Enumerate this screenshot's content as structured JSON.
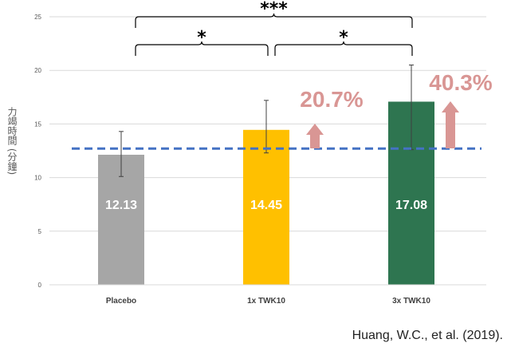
{
  "chart_data": {
    "type": "bar",
    "categories": [
      "Placebo",
      "1x TWK10",
      "3x TWK10"
    ],
    "values": [
      12.13,
      14.45,
      17.08
    ],
    "value_labels": [
      "12.13",
      "14.45",
      "17.08"
    ],
    "error_bars": [
      {
        "low": 10.1,
        "high": 14.3
      },
      {
        "low": 12.3,
        "high": 17.2
      },
      {
        "low": 12.6,
        "high": 20.5
      }
    ],
    "bar_colors": [
      "#a6a6a6",
      "#ffc000",
      "#2e7550"
    ],
    "ylabel": "力竭時間 (分鐘)",
    "ylim": [
      0,
      25
    ],
    "yticks": [
      "0",
      "5",
      "10",
      "15",
      "20",
      "25"
    ],
    "grid": true,
    "reference_line": {
      "value": 12.7,
      "color": "#4472c4",
      "style": "dashed"
    },
    "increase_annotations": [
      {
        "category": "1x TWK10",
        "text": "20.7%",
        "color": "#d99694"
      },
      {
        "category": "3x TWK10",
        "text": "40.3%",
        "color": "#d99694"
      }
    ],
    "significance_brackets": [
      {
        "from": "Placebo",
        "to": "1x TWK10",
        "label": "*"
      },
      {
        "from": "1x TWK10",
        "to": "3x TWK10",
        "label": "*"
      },
      {
        "from": "Placebo",
        "to": "3x TWK10",
        "label": "***"
      }
    ]
  },
  "citation": "Huang, W.C., et al. (2019)."
}
